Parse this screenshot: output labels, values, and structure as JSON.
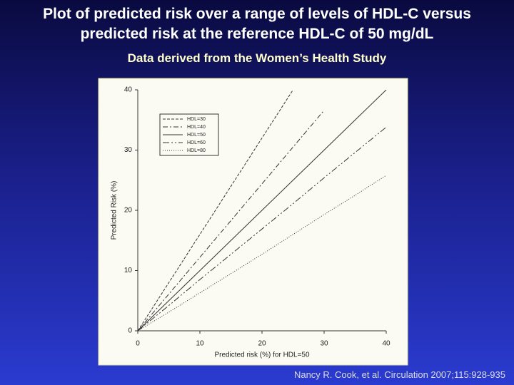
{
  "title": "Plot of predicted risk over a range of levels of HDL-C versus predicted risk at the reference HDL-C of 50 mg/dL",
  "subtitle": "Data derived from the Women’s Health Study",
  "citation": "Nancy R. Cook, et al. Circulation 2007;115:928-935",
  "chart_data": {
    "type": "line",
    "xlabel": "Predicted risk (%) for HDL=50",
    "ylabel": "Predicted Risk (%)",
    "x": [
      0,
      5,
      10,
      15,
      20,
      25,
      30,
      35,
      40
    ],
    "series": [
      {
        "name": "HDL=30",
        "color": "#333333",
        "dash": "dashed",
        "values": [
          0,
          8,
          16,
          24,
          32,
          40,
          null,
          null,
          null
        ]
      },
      {
        "name": "HDL=40",
        "color": "#333333",
        "dash": "dashdot",
        "values": [
          0,
          6.1,
          12.2,
          18.3,
          24.4,
          30.5,
          36.6,
          null,
          null
        ]
      },
      {
        "name": "HDL=50",
        "color": "#333333",
        "dash": "solid",
        "values": [
          0,
          5,
          10,
          15,
          20,
          25,
          30,
          35,
          40
        ]
      },
      {
        "name": "HDL=60",
        "color": "#333333",
        "dash": "longdash",
        "values": [
          0,
          4.2,
          8.5,
          12.7,
          16.9,
          21.1,
          25.4,
          29.6,
          33.8
        ]
      },
      {
        "name": "HDL=80",
        "color": "#333333",
        "dash": "dotted",
        "values": [
          0,
          3.1,
          6.3,
          9.5,
          12.7,
          16,
          19.3,
          22.5,
          25.8
        ]
      }
    ],
    "xlim": [
      0,
      40
    ],
    "ylim": [
      0,
      40
    ],
    "xticks": [
      0,
      10,
      20,
      30,
      40
    ],
    "yticks": [
      0,
      10,
      20,
      30,
      40
    ],
    "legend": "upper left"
  }
}
